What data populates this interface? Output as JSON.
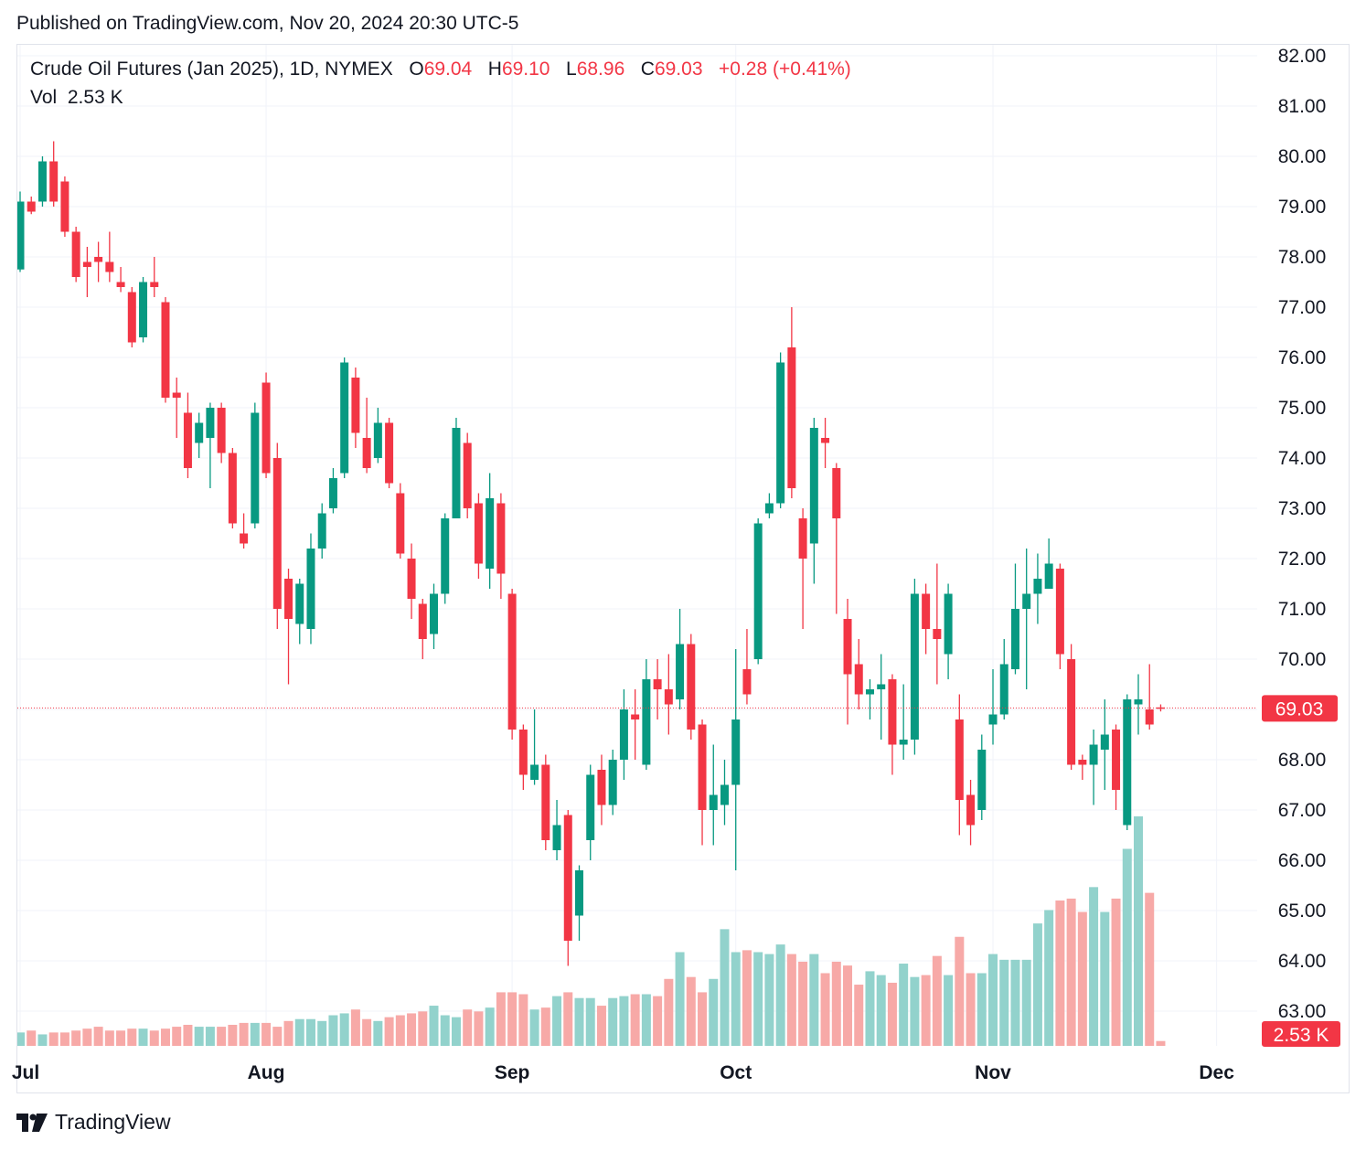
{
  "header": {
    "published": "Published on TradingView.com, Nov 20, 2024 20:30 UTC-5"
  },
  "legend": {
    "symbol": "Crude Oil Futures (Jan 2025), 1D, NYMEX",
    "o_label": "O",
    "o": "69.04",
    "h_label": "H",
    "h": "69.10",
    "l_label": "L",
    "l": "68.96",
    "c_label": "C",
    "c": "69.03",
    "change": "+0.28 (+0.41%)",
    "vol_label": "Vol",
    "vol": "2.53 K"
  },
  "price_tag": "69.03",
  "vol_tag": "2.53 K",
  "footer": {
    "brand": "TradingView"
  },
  "colors": {
    "up": "#089981",
    "down": "#f23645",
    "vol_up": "#92d2cc",
    "vol_down": "#f7a9a7",
    "grid": "#f0f3fa"
  },
  "chart_data": {
    "type": "candlestick",
    "y_axis": {
      "min": 62.5,
      "max": 82.1,
      "ticks": [
        "82.00",
        "81.00",
        "80.00",
        "79.00",
        "78.00",
        "77.00",
        "76.00",
        "75.00",
        "74.00",
        "73.00",
        "72.00",
        "71.00",
        "70.00",
        "69.00",
        "68.00",
        "67.00",
        "66.00",
        "65.00",
        "64.00",
        "63.00"
      ]
    },
    "x_ticks": [
      {
        "label": "Jul",
        "index": 0
      },
      {
        "label": "Aug",
        "index": 22
      },
      {
        "label": "Sep",
        "index": 44
      },
      {
        "label": "Oct",
        "index": 64
      },
      {
        "label": "Nov",
        "index": 87
      },
      {
        "label": "Dec",
        "index": 107
      }
    ],
    "last_price": 69.03,
    "candles": [
      [
        77.75,
        79.1,
        79.3,
        77.7
      ],
      [
        79.1,
        78.9,
        79.2,
        78.85
      ],
      [
        79.1,
        79.9,
        80.0,
        79.0
      ],
      [
        79.9,
        79.1,
        80.3,
        79.0
      ],
      [
        79.5,
        78.5,
        79.6,
        78.4
      ],
      [
        78.5,
        77.6,
        78.6,
        77.5
      ],
      [
        77.9,
        77.8,
        78.2,
        77.2
      ],
      [
        78.0,
        77.9,
        78.3,
        77.5
      ],
      [
        77.9,
        77.7,
        78.5,
        77.5
      ],
      [
        77.5,
        77.4,
        77.8,
        77.3
      ],
      [
        77.3,
        76.3,
        77.4,
        76.2
      ],
      [
        76.4,
        77.5,
        77.6,
        76.3
      ],
      [
        77.5,
        77.4,
        78.0,
        77.2
      ],
      [
        77.1,
        75.2,
        77.2,
        75.1
      ],
      [
        75.3,
        75.2,
        75.6,
        74.4
      ],
      [
        74.9,
        73.8,
        75.3,
        73.6
      ],
      [
        74.3,
        74.7,
        74.9,
        74.0
      ],
      [
        74.4,
        75.0,
        75.1,
        73.4
      ],
      [
        75.0,
        74.1,
        75.1,
        73.9
      ],
      [
        74.1,
        72.7,
        74.2,
        72.6
      ],
      [
        72.5,
        72.3,
        72.9,
        72.2
      ],
      [
        72.7,
        74.9,
        75.1,
        72.6
      ],
      [
        75.5,
        73.7,
        75.7,
        73.6
      ],
      [
        74.0,
        71.0,
        74.3,
        70.6
      ],
      [
        71.6,
        70.8,
        71.8,
        69.5
      ],
      [
        70.7,
        71.5,
        71.6,
        70.3
      ],
      [
        70.6,
        72.2,
        72.5,
        70.3
      ],
      [
        72.2,
        72.9,
        73.1,
        72.0
      ],
      [
        73.0,
        73.6,
        73.8,
        72.9
      ],
      [
        73.7,
        75.9,
        76.0,
        73.6
      ],
      [
        75.6,
        74.5,
        75.8,
        74.2
      ],
      [
        74.4,
        73.8,
        75.2,
        73.7
      ],
      [
        74.0,
        74.7,
        75.0,
        73.9
      ],
      [
        74.7,
        73.5,
        74.8,
        73.4
      ],
      [
        73.3,
        72.1,
        73.5,
        72.0
      ],
      [
        72.0,
        71.2,
        72.3,
        70.8
      ],
      [
        71.1,
        70.4,
        71.2,
        70.0
      ],
      [
        70.5,
        71.3,
        71.5,
        70.2
      ],
      [
        71.3,
        72.8,
        72.9,
        71.1
      ],
      [
        72.8,
        74.6,
        74.8,
        72.8
      ],
      [
        74.3,
        73.0,
        74.5,
        72.8
      ],
      [
        73.1,
        71.9,
        73.3,
        71.6
      ],
      [
        71.8,
        73.2,
        73.7,
        71.4
      ],
      [
        73.1,
        71.7,
        73.3,
        71.2
      ],
      [
        71.3,
        68.6,
        71.4,
        68.4
      ],
      [
        68.6,
        67.7,
        68.7,
        67.4
      ],
      [
        67.6,
        67.9,
        69.0,
        67.5
      ],
      [
        67.9,
        66.4,
        68.1,
        66.2
      ],
      [
        66.2,
        66.7,
        67.2,
        66.0
      ],
      [
        66.9,
        64.4,
        67.0,
        63.9
      ],
      [
        64.9,
        65.8,
        65.9,
        64.4
      ],
      [
        66.4,
        67.7,
        67.9,
        66.0
      ],
      [
        67.8,
        67.1,
        68.1,
        66.7
      ],
      [
        67.1,
        68.0,
        68.2,
        66.9
      ],
      [
        68.0,
        69.0,
        69.4,
        67.6
      ],
      [
        68.9,
        68.8,
        69.4,
        68.0
      ],
      [
        67.9,
        69.6,
        70.0,
        67.8
      ],
      [
        69.6,
        69.4,
        70.0,
        68.8
      ],
      [
        69.4,
        69.1,
        70.1,
        68.5
      ],
      [
        69.2,
        70.3,
        71.0,
        69.0
      ],
      [
        70.3,
        68.6,
        70.5,
        68.4
      ],
      [
        68.7,
        67.0,
        68.8,
        66.3
      ],
      [
        67.0,
        67.3,
        68.3,
        66.3
      ],
      [
        67.1,
        67.5,
        68.0,
        66.7
      ],
      [
        67.5,
        68.8,
        70.2,
        65.8
      ],
      [
        69.8,
        69.3,
        70.6,
        69.1
      ],
      [
        70.0,
        72.7,
        72.8,
        69.9
      ],
      [
        72.9,
        73.1,
        73.3,
        72.8
      ],
      [
        73.1,
        75.9,
        76.1,
        73.0
      ],
      [
        76.2,
        73.4,
        77.0,
        73.2
      ],
      [
        72.8,
        72.0,
        73.0,
        70.6
      ],
      [
        72.3,
        74.6,
        74.8,
        71.5
      ],
      [
        74.4,
        74.3,
        74.8,
        73.8
      ],
      [
        73.8,
        72.8,
        73.9,
        70.9
      ],
      [
        70.8,
        69.7,
        71.2,
        68.7
      ],
      [
        69.9,
        69.3,
        70.4,
        69.0
      ],
      [
        69.3,
        69.4,
        69.6,
        68.8
      ],
      [
        69.4,
        69.5,
        70.1,
        68.4
      ],
      [
        69.6,
        68.3,
        69.7,
        67.7
      ],
      [
        68.3,
        68.4,
        69.5,
        68.0
      ],
      [
        68.4,
        71.3,
        71.6,
        68.1
      ],
      [
        71.3,
        70.6,
        71.5,
        70.1
      ],
      [
        70.6,
        70.4,
        71.9,
        69.5
      ],
      [
        70.1,
        71.3,
        71.5,
        69.6
      ],
      [
        68.8,
        67.2,
        69.3,
        66.5
      ],
      [
        67.3,
        66.7,
        67.6,
        66.3
      ],
      [
        67.0,
        68.2,
        68.5,
        66.8
      ],
      [
        68.7,
        68.9,
        69.8,
        68.3
      ],
      [
        68.9,
        69.9,
        70.4,
        68.8
      ],
      [
        69.8,
        71.0,
        71.9,
        69.7
      ],
      [
        71.0,
        71.3,
        72.2,
        69.4
      ],
      [
        71.3,
        71.6,
        72.1,
        70.7
      ],
      [
        71.4,
        71.9,
        72.4,
        71.4
      ],
      [
        71.8,
        70.1,
        71.9,
        69.8
      ],
      [
        70.0,
        67.9,
        70.3,
        67.8
      ],
      [
        68.0,
        67.9,
        68.1,
        67.6
      ],
      [
        67.9,
        68.3,
        68.6,
        67.1
      ],
      [
        68.2,
        68.5,
        69.2,
        67.4
      ],
      [
        68.6,
        67.4,
        68.7,
        67.0
      ],
      [
        66.7,
        69.2,
        69.3,
        66.6
      ],
      [
        69.1,
        69.2,
        69.7,
        68.5
      ],
      [
        69.0,
        68.7,
        69.9,
        68.6
      ],
      [
        69.04,
        69.03,
        69.1,
        68.96
      ]
    ],
    "volume_k": [
      7,
      8,
      6,
      7,
      7,
      8,
      9,
      10,
      8,
      8,
      9,
      9,
      8,
      9,
      10,
      11,
      10,
      10,
      10,
      11,
      12,
      12,
      12,
      10,
      13,
      14,
      14,
      13,
      16,
      17,
      19,
      14,
      13,
      15,
      16,
      17,
      18,
      21,
      16,
      15,
      19,
      18,
      20,
      28,
      28,
      27,
      19,
      20,
      26,
      28,
      25,
      25,
      21,
      25,
      26,
      27,
      27,
      26,
      35,
      49,
      36,
      28,
      35,
      61,
      49,
      50,
      49,
      48,
      53,
      48,
      44,
      48,
      38,
      44,
      42,
      32,
      39,
      37,
      33,
      43,
      36,
      37,
      47,
      37,
      57,
      38,
      38,
      48,
      45,
      45,
      45,
      64,
      71,
      76,
      77,
      70,
      83,
      70,
      77,
      103,
      120,
      80,
      2.53
    ],
    "vol_scale_k": 130
  }
}
